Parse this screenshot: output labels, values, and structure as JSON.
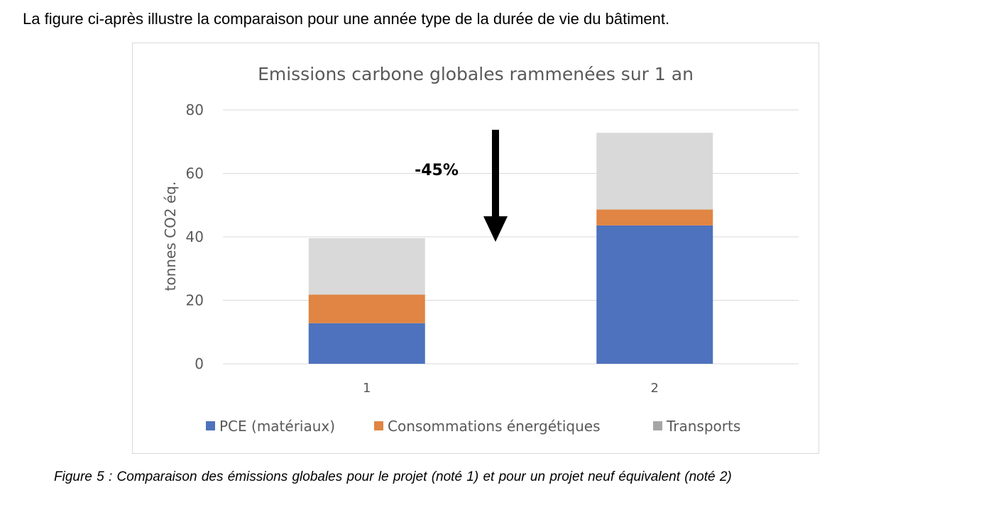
{
  "intro_text": "La figure ci-après illustre la comparaison pour une année type de la durée de vie du bâtiment.",
  "caption": "Figure 5 : Comparaison des émissions globales pour le projet (noté 1) et pour un projet neuf équivalent (noté 2)",
  "chart_data": {
    "type": "bar",
    "stacked": true,
    "title": "Emissions carbone globales rammenées sur 1 an",
    "xlabel": "",
    "ylabel": "tonnes CO2 éq.",
    "ylim": [
      0,
      80
    ],
    "yticks": [
      0,
      20,
      40,
      60,
      80
    ],
    "grid": true,
    "legend_position": "bottom",
    "categories": [
      "1",
      "2"
    ],
    "series": [
      {
        "name": "PCE (matériaux)",
        "color": "#4e72bd",
        "values": [
          12.8,
          43.6
        ]
      },
      {
        "name": "Consommations énergétiques",
        "color": "#e08543",
        "values": [
          9.0,
          5.0
        ]
      },
      {
        "name": "Transports",
        "color": "#d9d9d9",
        "values": [
          17.8,
          24.2
        ]
      }
    ],
    "annotation": {
      "text": "-45%",
      "arrow": "down"
    }
  }
}
